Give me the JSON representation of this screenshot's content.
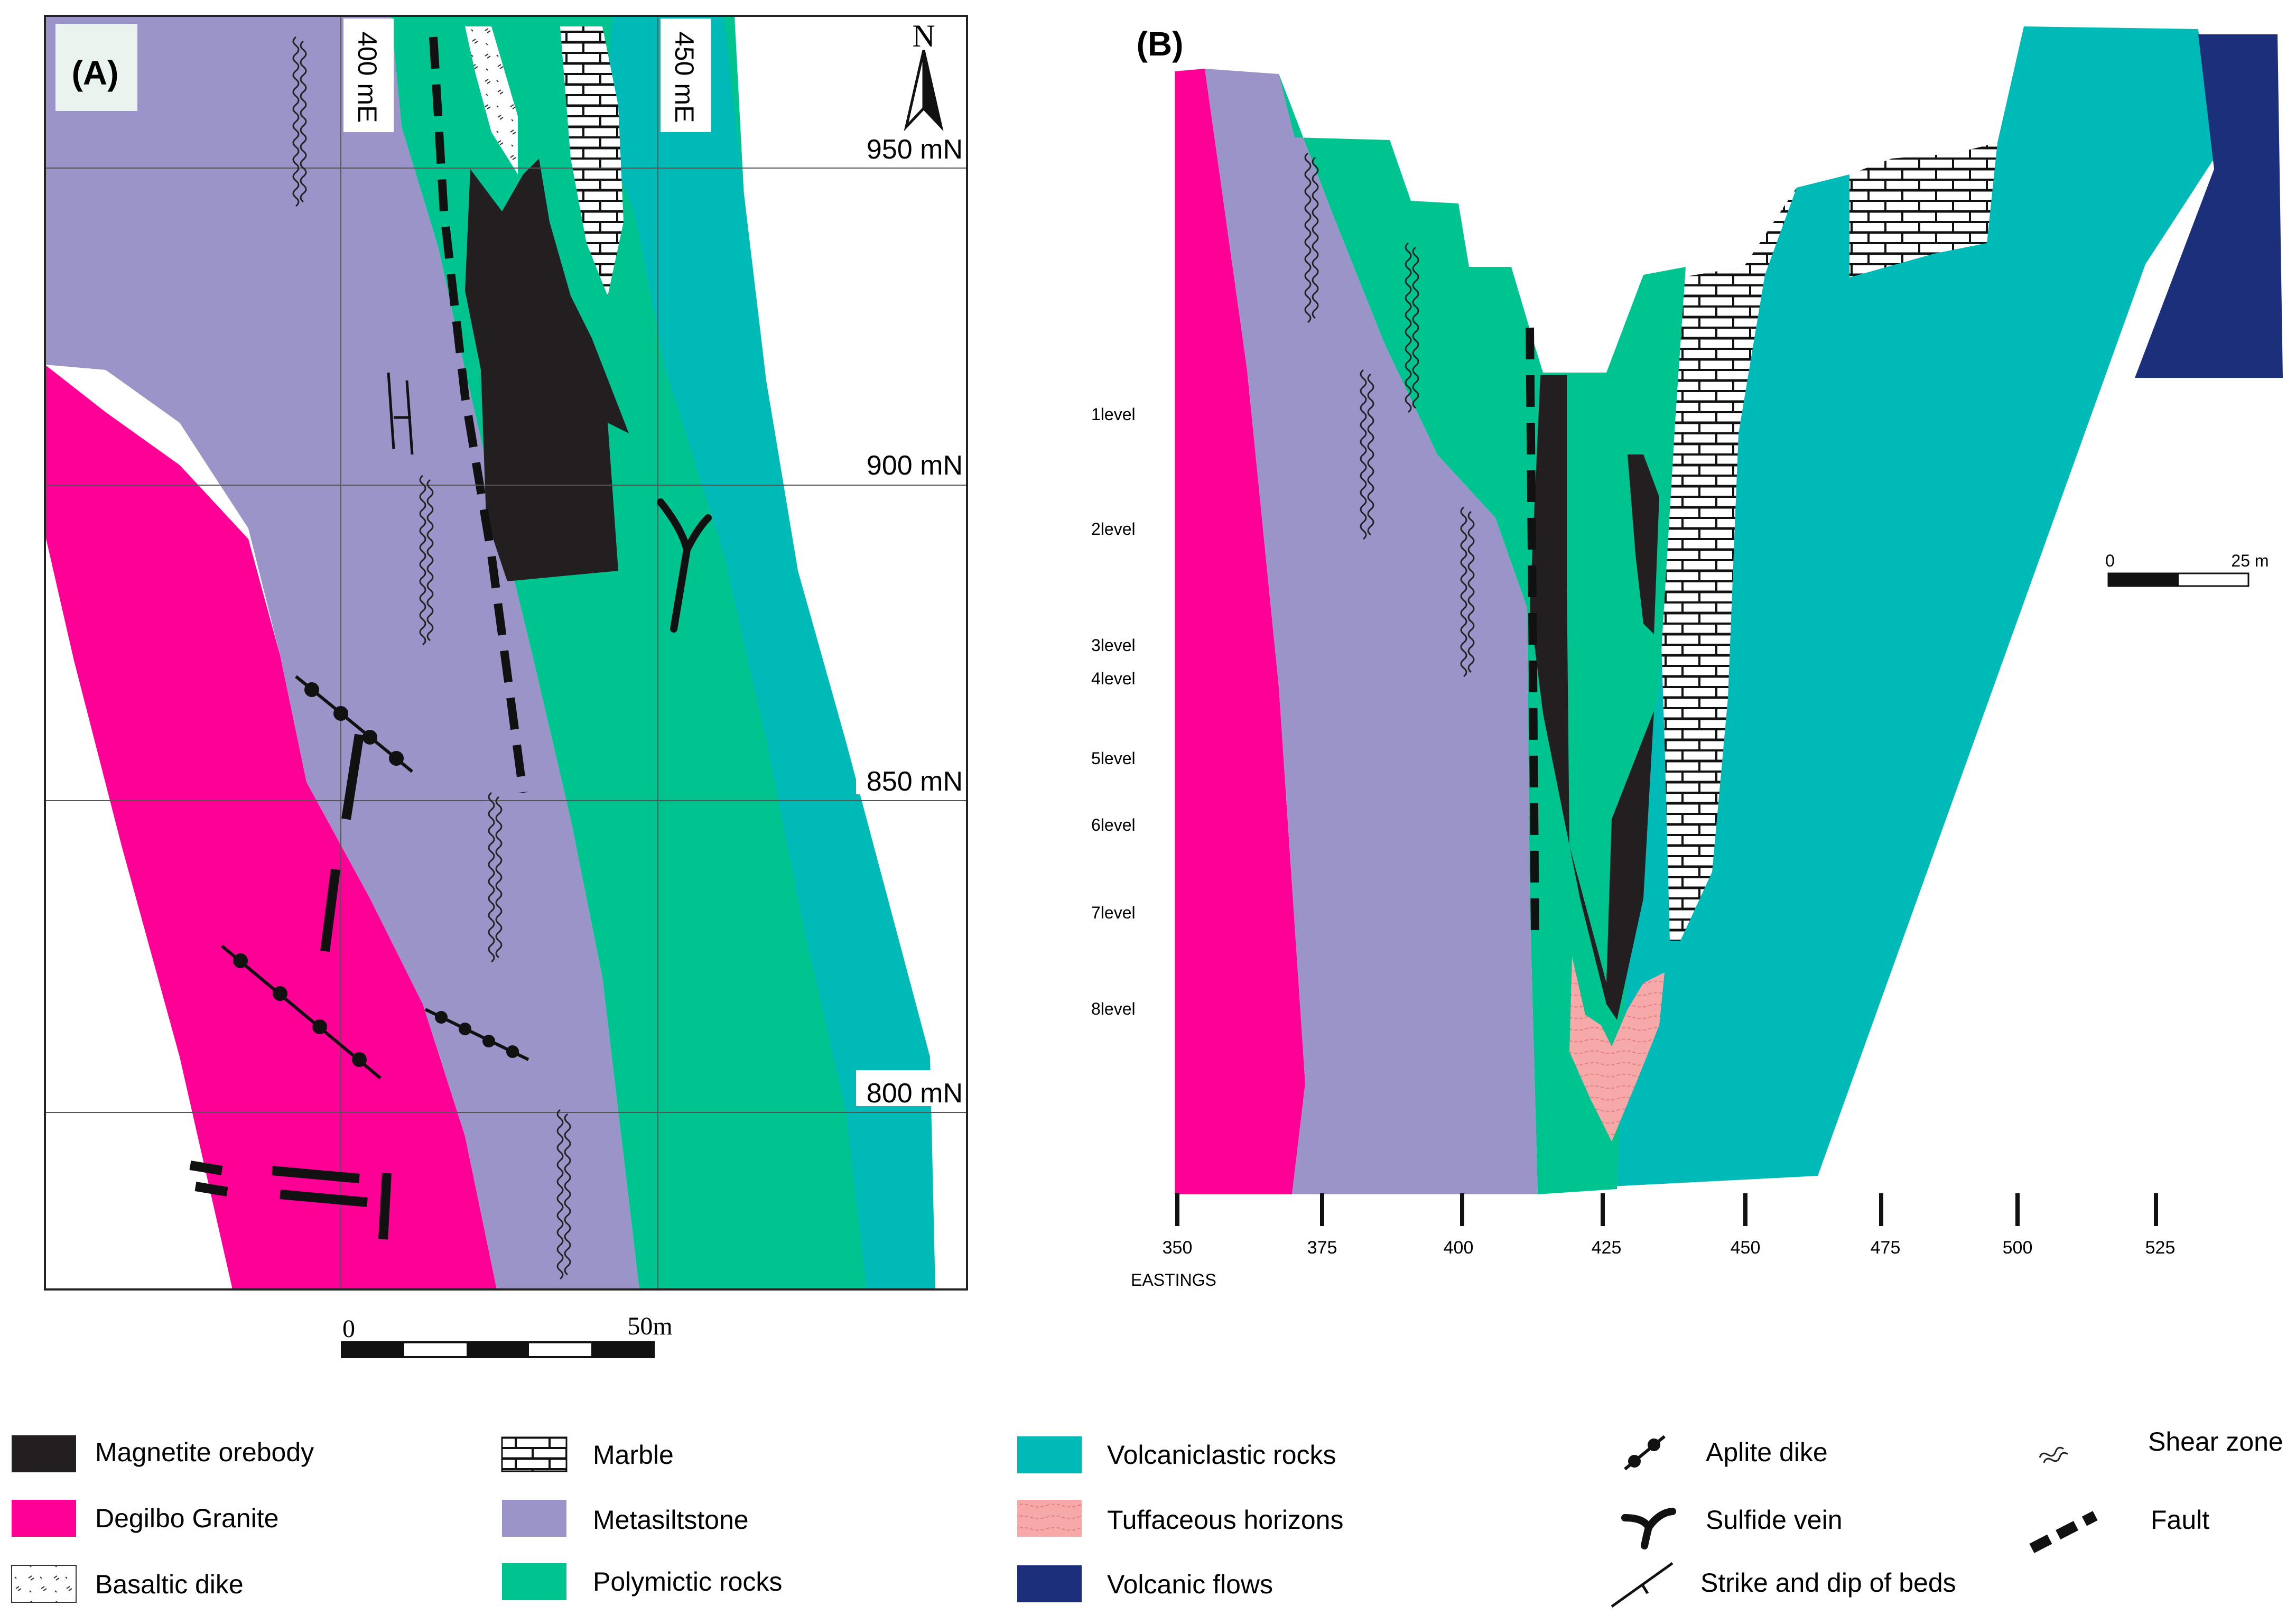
{
  "colors": {
    "granite": "#ff0096",
    "metasiltstone": "#9b94c8",
    "polymictic": "#00c48f",
    "volcaniclastic": "#00bab7",
    "magnetite": "#231f20",
    "volcanic_flows": "#1b2f7a",
    "tuffaceous": "#f7a8a8",
    "marble_fill": "#ffffff",
    "line": "#222222"
  },
  "panel_a": {
    "label": "(A)",
    "north_label": "N",
    "easting_labels": [
      "400 mE",
      "450 mE"
    ],
    "northing_labels": [
      "950 mN",
      "900 mN",
      "850 mN",
      "800 mN"
    ],
    "scale": {
      "start": "0",
      "end": "50m"
    }
  },
  "panel_b": {
    "label": "(B)",
    "levels": [
      "1level",
      "2level",
      "3level",
      "4level",
      "5level",
      "6level",
      "7level",
      "8level"
    ],
    "eastings": [
      "350",
      "375",
      "400",
      "425",
      "450",
      "475",
      "500",
      "525"
    ],
    "eastings_title": "EASTINGS",
    "scale": {
      "start": "0",
      "end": "25 m"
    }
  },
  "legend": [
    {
      "label": "Magnetite orebody",
      "symbol": "magnetite"
    },
    {
      "label": "Degilbo Granite",
      "symbol": "granite"
    },
    {
      "label": "Basaltic dike",
      "symbol": "basaltic"
    },
    {
      "label": "Marble",
      "symbol": "marble"
    },
    {
      "label": "Metasiltstone",
      "symbol": "metasiltstone"
    },
    {
      "label": "Polymictic rocks",
      "symbol": "polymictic"
    },
    {
      "label": "Volcaniclastic rocks",
      "symbol": "volcaniclastic"
    },
    {
      "label": "Tuffaceous horizons",
      "symbol": "tuffaceous"
    },
    {
      "label": "Volcanic flows",
      "symbol": "volcanic_flows"
    },
    {
      "label": "Aplite dike",
      "symbol": "aplite"
    },
    {
      "label": "Sulfide vein",
      "symbol": "sulfide"
    },
    {
      "label": "Strike and dip of beds",
      "symbol": "strike"
    },
    {
      "label": "Shear zone",
      "symbol": "shear"
    },
    {
      "label": "Fault",
      "symbol": "fault"
    }
  ]
}
